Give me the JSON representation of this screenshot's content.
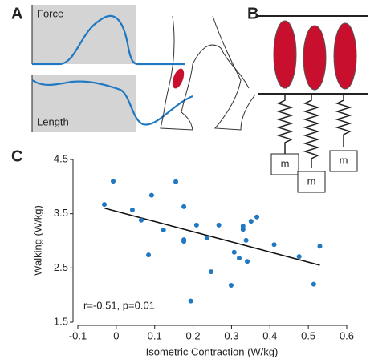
{
  "panel_labels": [
    "A",
    "B",
    "C"
  ],
  "panel_a": {
    "top_label": "Force",
    "bottom_label": "Length"
  },
  "panel_b": {
    "mass_labels": [
      "m",
      "m",
      "m"
    ]
  },
  "chart_data": {
    "type": "scatter",
    "x_label": "Isometric Contraction (W/kg)",
    "y_label": "Walking (W/kg)",
    "annotation": "r=-0.51, p=0.01",
    "color": "#1f78c1",
    "x": [
      -0.031,
      -0.008,
      0.042,
      0.065,
      0.092,
      0.084,
      0.123,
      0.155,
      0.176,
      0.176,
      0.176,
      0.209,
      0.236,
      0.247,
      0.267,
      0.299,
      0.307,
      0.32,
      0.33,
      0.33,
      0.338,
      0.351,
      0.366,
      0.341,
      0.411,
      0.476,
      0.53,
      0.514,
      0.194
    ],
    "values": [
      3.67,
      4.1,
      3.57,
      3.38,
      3.84,
      2.74,
      3.2,
      4.09,
      3.63,
      3.02,
      2.99,
      3.29,
      3.05,
      2.43,
      3.29,
      2.18,
      2.79,
      2.68,
      3.27,
      3.21,
      3.01,
      3.36,
      3.44,
      2.62,
      2.93,
      2.71,
      2.9,
      2.2,
      1.89
    ],
    "fit_line": {
      "x": [
        -0.03,
        0.53
      ],
      "values": [
        3.6,
        2.55
      ]
    },
    "xlim": [
      -0.1,
      0.6
    ],
    "xticks": [
      -0.1,
      0,
      0.1,
      0.2,
      0.3,
      0.4,
      0.5,
      0.6
    ],
    "ylim": [
      1.5,
      4.5
    ],
    "yticks": [
      1.5,
      2.5,
      3.5,
      4.5
    ]
  }
}
